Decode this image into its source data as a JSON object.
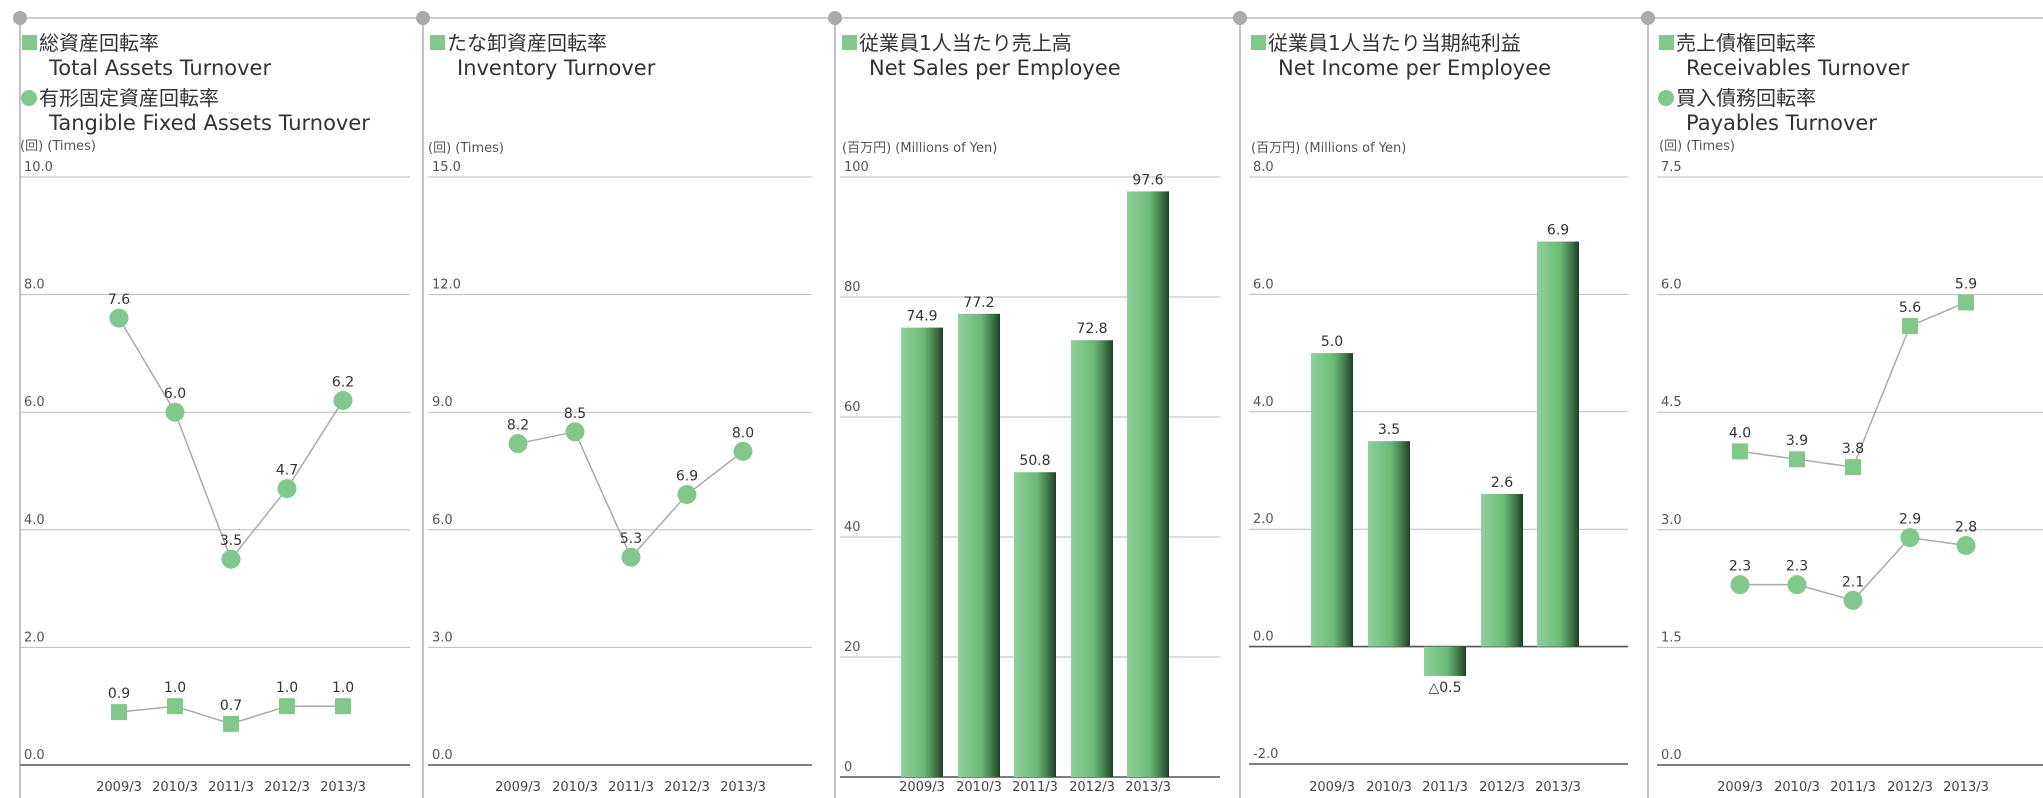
{
  "accent_color": "#82c88c",
  "chart_data": [
    {
      "type": "line",
      "titles": [
        {
          "marker": "square",
          "jp": "総資産回転率",
          "en": "Total Assets Turnover"
        },
        {
          "marker": "circle",
          "jp": "有形固定資産回転率",
          "en": "Tangible Fixed Assets Turnover"
        }
      ],
      "unit_label": "(回) (Times)",
      "ylim": [
        0,
        10
      ],
      "yticks": [
        "0.0",
        "2.0",
        "4.0",
        "6.0",
        "8.0",
        "10.0"
      ],
      "categories": [
        "2009/3",
        "2010/3",
        "2011/3",
        "2012/3",
        "2013/3"
      ],
      "series": [
        {
          "name": "総資産回転率 Total Assets Turnover",
          "marker": "square",
          "values": [
            0.9,
            1.0,
            0.7,
            1.0,
            1.0
          ],
          "labels": [
            "0.9",
            "1.0",
            "0.7",
            "1.0",
            "1.0"
          ]
        },
        {
          "name": "有形固定資産回転率 Tangible Fixed Assets Turnover",
          "marker": "circle",
          "values": [
            7.6,
            6.0,
            3.5,
            4.7,
            6.2
          ],
          "labels": [
            "7.6",
            "6.0",
            "3.5",
            "4.7",
            "6.2"
          ]
        }
      ]
    },
    {
      "type": "line",
      "titles": [
        {
          "marker": "square",
          "jp": "たな卸資産回転率",
          "en": "Inventory Turnover"
        }
      ],
      "unit_label": "(回) (Times)",
      "ylim": [
        0,
        15
      ],
      "yticks": [
        "0.0",
        "3.0",
        "6.0",
        "9.0",
        "12.0",
        "15.0"
      ],
      "categories": [
        "2009/3",
        "2010/3",
        "2011/3",
        "2012/3",
        "2013/3"
      ],
      "series": [
        {
          "name": "たな卸資産回転率 Inventory Turnover",
          "marker": "circle",
          "values": [
            8.2,
            8.5,
            5.3,
            6.9,
            8.0
          ],
          "labels": [
            "8.2",
            "8.5",
            "5.3",
            "6.9",
            "8.0"
          ]
        }
      ]
    },
    {
      "type": "bar",
      "titles": [
        {
          "marker": "square",
          "jp": "従業員1人当たり売上高",
          "en": "Net Sales per Employee"
        }
      ],
      "unit_label": "(百万円) (Millions of Yen)",
      "ylim": [
        0,
        100
      ],
      "yticks": [
        "0",
        "20",
        "40",
        "60",
        "80",
        "100"
      ],
      "categories": [
        "2009/3",
        "2010/3",
        "2011/3",
        "2012/3",
        "2013/3"
      ],
      "series": [
        {
          "name": "従業員1人当たり売上高 Net Sales per Employee",
          "values": [
            74.9,
            77.2,
            50.8,
            72.8,
            97.6
          ],
          "labels": [
            "74.9",
            "77.2",
            "50.8",
            "72.8",
            "97.6"
          ]
        }
      ]
    },
    {
      "type": "bar",
      "titles": [
        {
          "marker": "square",
          "jp": "従業員1人当たり当期純利益",
          "en": "Net Income per Employee"
        }
      ],
      "unit_label": "(百万円) (Millions of Yen)",
      "ylim": [
        -2,
        8
      ],
      "yticks": [
        "-2.0",
        "0.0",
        "2.0",
        "4.0",
        "6.0",
        "8.0"
      ],
      "categories": [
        "2009/3",
        "2010/3",
        "2011/3",
        "2012/3",
        "2013/3"
      ],
      "series": [
        {
          "name": "従業員1人当たり当期純利益 Net Income per Employee",
          "values": [
            5.0,
            3.5,
            -0.5,
            2.6,
            6.9
          ],
          "labels": [
            "5.0",
            "3.5",
            "△0.5",
            "2.6",
            "6.9"
          ]
        }
      ]
    },
    {
      "type": "line",
      "titles": [
        {
          "marker": "square",
          "jp": "売上債権回転率",
          "en": "Receivables Turnover"
        },
        {
          "marker": "circle",
          "jp": "買入債務回転率",
          "en": "Payables Turnover"
        }
      ],
      "unit_label": "(回) (Times)",
      "ylim": [
        0,
        7.5
      ],
      "yticks": [
        "0.0",
        "1.5",
        "3.0",
        "4.5",
        "6.0",
        "7.5"
      ],
      "categories": [
        "2009/3",
        "2010/3",
        "2011/3",
        "2012/3",
        "2013/3"
      ],
      "series": [
        {
          "name": "売上債権回転率 Receivables Turnover",
          "marker": "square",
          "values": [
            4.0,
            3.9,
            3.8,
            5.6,
            5.9
          ],
          "labels": [
            "4.0",
            "3.9",
            "3.8",
            "5.6",
            "5.9"
          ]
        },
        {
          "name": "買入債務回転率 Payables Turnover",
          "marker": "circle",
          "values": [
            2.3,
            2.3,
            2.1,
            2.9,
            2.8
          ],
          "labels": [
            "2.3",
            "2.3",
            "2.1",
            "2.9",
            "2.8"
          ]
        }
      ]
    }
  ]
}
